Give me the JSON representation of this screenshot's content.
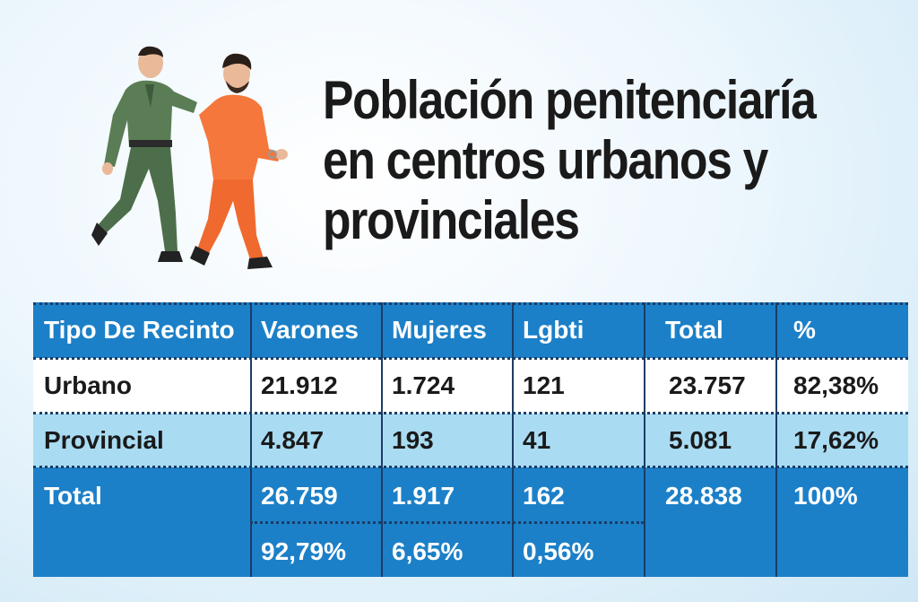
{
  "title": {
    "lines": [
      "Población penitenciaría",
      "en centros urbanos y",
      "provinciales"
    ]
  },
  "illustration": {
    "icon": "guard-escorting-prisoner-illustration"
  },
  "table": {
    "headers": [
      "Tipo De Recinto",
      "Varones",
      "Mujeres",
      "Lgbti",
      "Total",
      "%"
    ],
    "rows": [
      [
        "Urbano",
        "21.912",
        "1.724",
        "121",
        "23.757",
        "82,38%"
      ],
      [
        "Provincial",
        "4.847",
        "193",
        "41",
        "5.081",
        "17,62%"
      ]
    ],
    "total": {
      "label": "Total",
      "values": [
        "26.759",
        "1.917",
        "162",
        "28.838",
        "100%"
      ],
      "percentages": [
        "92,79%",
        "6,65%",
        "0,56%"
      ]
    }
  },
  "colors": {
    "header_bg": "#1c80c8",
    "row_light": "#a9dcf3",
    "row_white": "#ffffff",
    "text_dark": "#1a1a1a"
  }
}
